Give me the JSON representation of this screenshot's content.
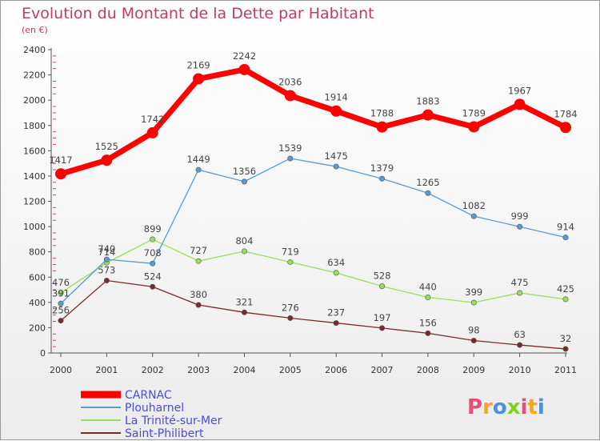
{
  "chart_data": {
    "type": "line",
    "title": "Evolution du Montant de la Dette par Habitant",
    "subtitle": "(en €)",
    "categories": [
      "2000",
      "2001",
      "2002",
      "2003",
      "2004",
      "2005",
      "2006",
      "2007",
      "2008",
      "2009",
      "2010",
      "2011"
    ],
    "ylim": [
      0,
      2400
    ],
    "yticks": [
      0,
      200,
      400,
      600,
      800,
      1000,
      1200,
      1400,
      1600,
      1800,
      2000,
      2200,
      2400
    ],
    "grid": false,
    "legend_position": "bottom-left",
    "series": [
      {
        "name": "CARNAC",
        "color": "#ff0000",
        "values": [
          1417,
          1525,
          1742,
          2169,
          2242,
          2036,
          1914,
          1788,
          1883,
          1789,
          1967,
          1784
        ]
      },
      {
        "name": "Plouharnel",
        "color": "#5b9bd5",
        "values": [
          391,
          740,
          708,
          1449,
          1356,
          1539,
          1475,
          1379,
          1265,
          1082,
          999,
          914
        ]
      },
      {
        "name": "La Trinité-sur-Mer",
        "color": "#99e05a",
        "values": [
          476,
          714,
          899,
          727,
          804,
          719,
          634,
          528,
          440,
          399,
          475,
          425
        ]
      },
      {
        "name": "Saint-Philibert",
        "color": "#7a2a2a",
        "values": [
          256,
          573,
          524,
          380,
          321,
          276,
          237,
          197,
          156,
          98,
          63,
          32
        ]
      }
    ]
  },
  "logo": {
    "text": "Proxiti",
    "colors": [
      "#e94e77",
      "#f5a623",
      "#4a90e2",
      "#7ed321",
      "#e94e77",
      "#f5a623",
      "#4a90e2"
    ]
  }
}
